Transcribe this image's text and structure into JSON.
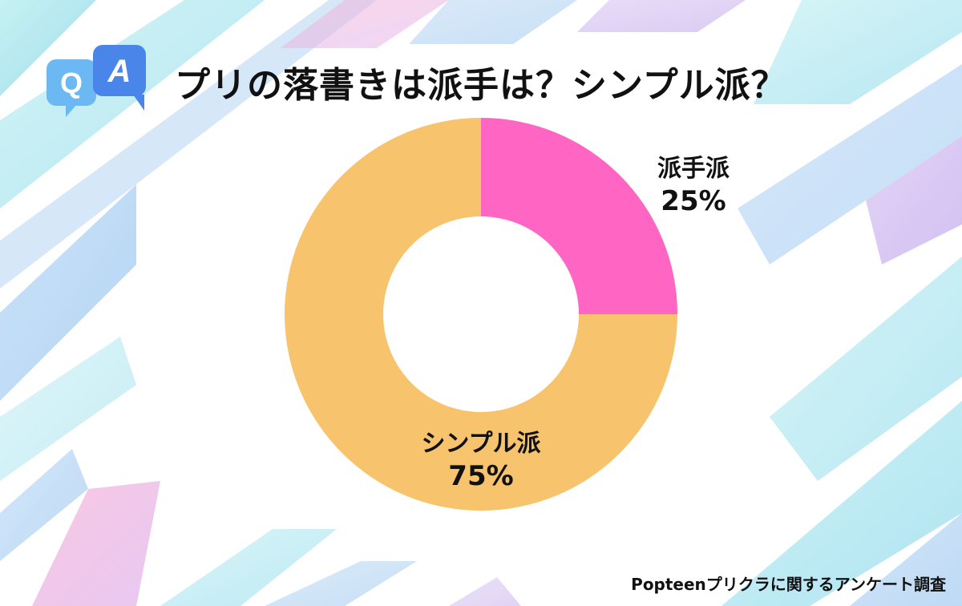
{
  "title": "プリの落書きは派手は？シンプル派？",
  "qa_icon": {
    "q": "Q",
    "a": "A",
    "q_color": "#6bb8f2",
    "a_color": "#4a86ea"
  },
  "source": "Popteenプリクラに関するアンケート調査",
  "chart_data": {
    "type": "pie",
    "variant": "donut",
    "categories": [
      "派手派",
      "シンプル派"
    ],
    "values": [
      25,
      75
    ],
    "value_labels": [
      "25%",
      "75%"
    ],
    "colors": [
      "#ff66c4",
      "#f7c46d"
    ],
    "start_angle": "12 o'clock, clockwise",
    "legend": "none"
  }
}
